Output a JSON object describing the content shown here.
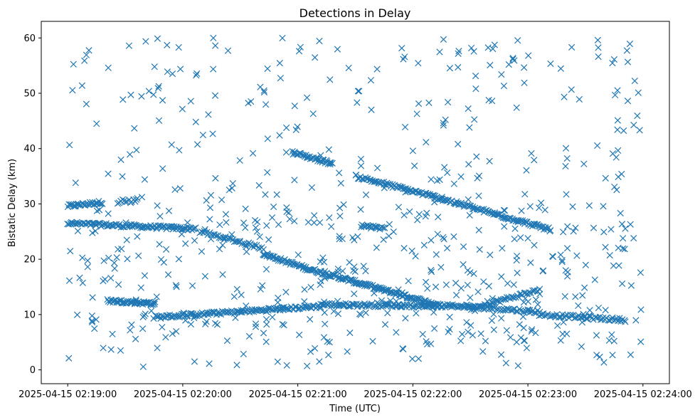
{
  "chart_data": {
    "type": "scatter",
    "title": "Detections in Delay",
    "xlabel": "Time (UTC)",
    "ylabel": "Bistatic Delay (km)",
    "x_unit": "minutes since 2025-04-15 02:19:00",
    "xlim": [
      -0.23,
      5.23
    ],
    "ylim": [
      -2.5,
      63
    ],
    "x_ticks": [
      {
        "value": 0,
        "label": "2025-04-15 02:19:00"
      },
      {
        "value": 1,
        "label": "2025-04-15 02:20:00"
      },
      {
        "value": 2,
        "label": "2025-04-15 02:21:00"
      },
      {
        "value": 3,
        "label": "2025-04-15 02:22:00"
      },
      {
        "value": 4,
        "label": "2025-04-15 02:23:00"
      },
      {
        "value": 5,
        "label": "2025-04-15 02:24:00"
      }
    ],
    "y_ticks": [
      0,
      10,
      20,
      30,
      40,
      50,
      60
    ],
    "marker": "x",
    "color": "#1f77b4",
    "tracks": [
      {
        "name": "track-a",
        "x_start": 0.0,
        "x_end": 0.3,
        "y_start": 29.6,
        "y_end": 30.3,
        "count": 32
      },
      {
        "name": "track-b",
        "x_start": 0.0,
        "x_end": 1.1,
        "y_start": 26.5,
        "y_end": 25.5,
        "count": 110
      },
      {
        "name": "track-c",
        "x_start": 1.15,
        "x_end": 1.7,
        "y_start": 25.0,
        "y_end": 22.0,
        "count": 40
      },
      {
        "name": "track-d",
        "x_start": 1.7,
        "x_end": 2.05,
        "y_start": 21.0,
        "y_end": 18.5,
        "count": 40
      },
      {
        "name": "track-e",
        "x_start": 2.05,
        "x_end": 3.25,
        "y_start": 18.5,
        "y_end": 11.5,
        "count": 150
      },
      {
        "name": "track-f",
        "x_start": 0.35,
        "x_end": 0.75,
        "y_start": 12.5,
        "y_end": 12.0,
        "count": 50
      },
      {
        "name": "track-g",
        "x_start": 0.75,
        "x_end": 2.2,
        "y_start": 9.5,
        "y_end": 11.5,
        "count": 130
      },
      {
        "name": "track-h",
        "x_start": 2.2,
        "x_end": 3.5,
        "y_start": 11.8,
        "y_end": 11.5,
        "count": 120
      },
      {
        "name": "track-i",
        "x_start": 3.5,
        "x_end": 4.1,
        "y_start": 11.0,
        "y_end": 14.5,
        "count": 50
      },
      {
        "name": "track-j",
        "x_start": 3.45,
        "x_end": 4.1,
        "y_start": 11.5,
        "y_end": 10.5,
        "count": 50
      },
      {
        "name": "track-k",
        "x_start": 4.1,
        "x_end": 4.85,
        "y_start": 10.0,
        "y_end": 9.0,
        "count": 60
      },
      {
        "name": "track-l",
        "x_start": 1.95,
        "x_end": 2.3,
        "y_start": 39.3,
        "y_end": 37.3,
        "count": 40
      },
      {
        "name": "track-m",
        "x_start": 2.5,
        "x_end": 3.15,
        "y_start": 35.0,
        "y_end": 31.5,
        "count": 60
      },
      {
        "name": "track-n",
        "x_start": 3.15,
        "x_end": 4.2,
        "y_start": 31.5,
        "y_end": 25.3,
        "count": 110
      },
      {
        "name": "track-o",
        "x_start": 2.55,
        "x_end": 2.75,
        "y_start": 26.0,
        "y_end": 25.5,
        "count": 20
      },
      {
        "name": "track-p",
        "x_start": 0.45,
        "x_end": 0.6,
        "y_start": 30.5,
        "y_end": 30.5,
        "count": 12
      }
    ],
    "clutter": {
      "count": 650,
      "x_range": [
        0,
        5.0
      ],
      "y_range": [
        0.5,
        60
      ]
    }
  }
}
